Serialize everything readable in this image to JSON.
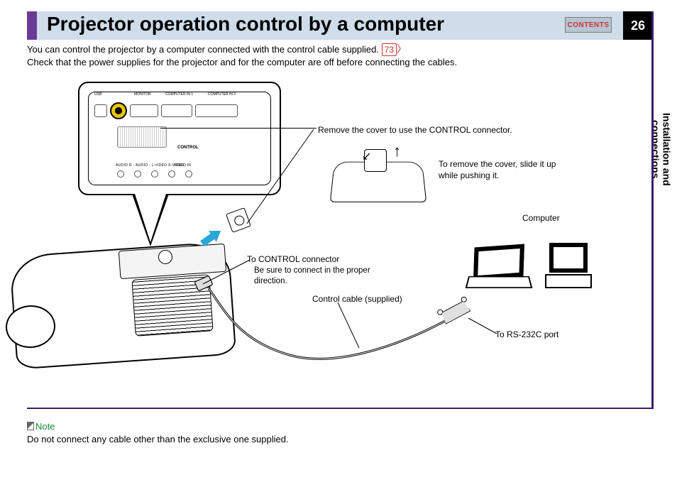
{
  "page": {
    "title": "Projector operation control by a computer",
    "contents_button": "CONTENTS",
    "number": "26",
    "intro_line1_a": "You can control the projector by a computer connected with the control cable supplied. ",
    "ref_number": "73",
    "intro_line2": "Check that the power supplies for the projector and for the computer are off before connecting the cables.",
    "side_tab": "Installation and\nconnections"
  },
  "panel": {
    "labels": {
      "usb": "USB",
      "monitor": "MONITOR",
      "comp_in1": "COMPUTER IN 1",
      "comp_in2": "COMPUTER IN 2",
      "control": "CONTROL",
      "audio_row": "AUDIO        R - AUDIO - L        VIDEO        S-VIDEO",
      "video_in": "VIDEO IN",
      "audio_in": "IN"
    }
  },
  "diagram": {
    "remove_cover": "Remove the cover to use the CONTROL connector.",
    "to_remove": "To remove the cover, slide it up while pushing it.",
    "to_control": "To CONTROL connector",
    "be_sure": "Be sure to connect in the proper direction.",
    "control_cable": "Control cable (supplied)",
    "computer": "Computer",
    "to_rs232c": "To RS-232C port"
  },
  "note": {
    "label": "Note",
    "text": "Do not connect any cable other than the exclusive one supplied."
  },
  "colors": {
    "header_bg": "#cfdce9",
    "purple": "#6a3b96",
    "deep_purple": "#3b1a6e",
    "red": "#d03030",
    "green": "#1a8a2e",
    "blue_arrow": "#29a7d9",
    "control_ring": "#e8c400"
  }
}
